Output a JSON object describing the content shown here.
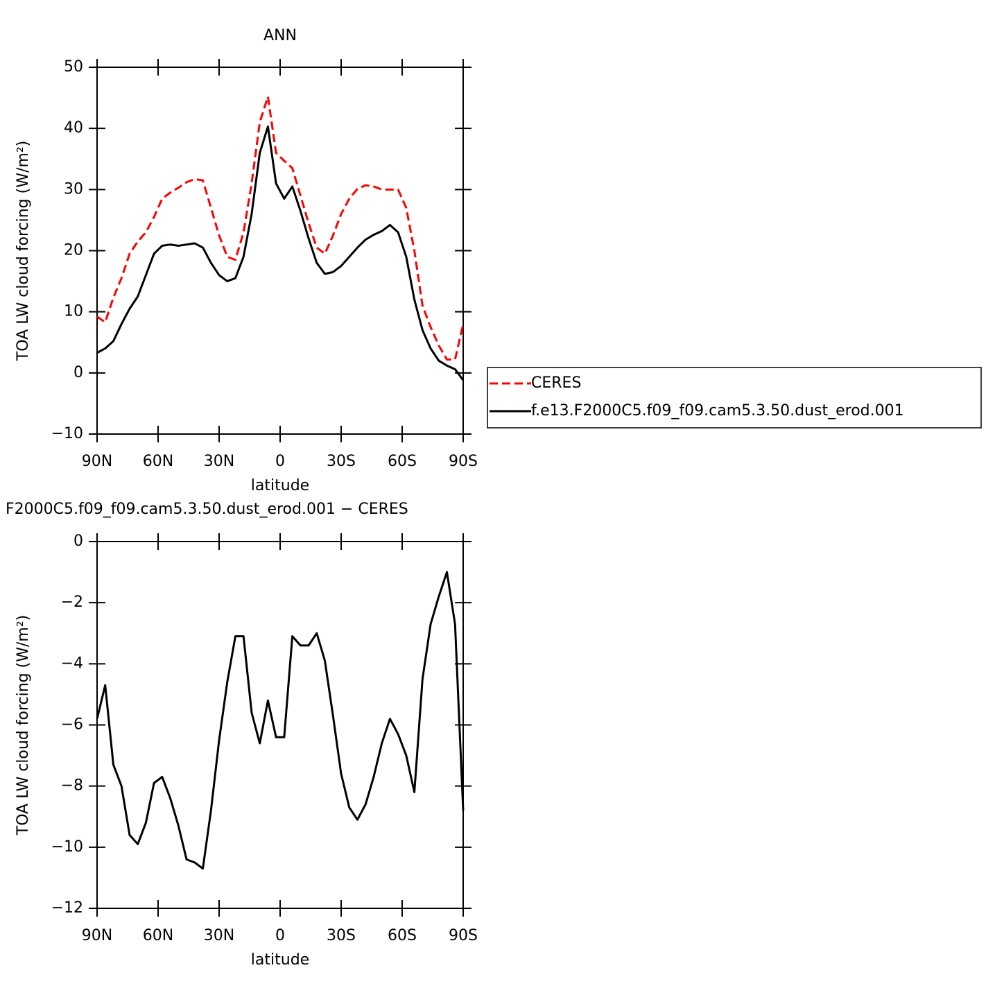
{
  "chart_data": [
    {
      "type": "line",
      "title": "ANN",
      "xlabel": "latitude",
      "ylabel": "TOA LW cloud forcing (W/m²)",
      "x": [
        90,
        86,
        82,
        78,
        74,
        70,
        66,
        62,
        58,
        54,
        50,
        46,
        42,
        38,
        34,
        30,
        26,
        22,
        18,
        14,
        10,
        6,
        2,
        -2,
        -6,
        -10,
        -14,
        -18,
        -22,
        -26,
        -30,
        -34,
        -38,
        -42,
        -46,
        -50,
        -54,
        -58,
        -62,
        -66,
        -70,
        -74,
        -78,
        -82,
        -86,
        -90
      ],
      "xlim": [
        90,
        -90
      ],
      "xticks": [
        {
          "value": 90,
          "label": "90N"
        },
        {
          "value": 60,
          "label": "60N"
        },
        {
          "value": 30,
          "label": "30N"
        },
        0,
        {
          "value": -30,
          "label": "30S"
        },
        {
          "value": -60,
          "label": "60S"
        },
        {
          "value": -90,
          "label": "90S"
        }
      ],
      "ylim": [
        -10,
        50
      ],
      "yticks": [
        {
          "value": -10,
          "label": "−10"
        },
        0,
        10,
        20,
        30,
        40,
        50
      ],
      "legend": "outside right",
      "series": [
        {
          "name": "CERES",
          "color": "#ff0000",
          "style": "dashed",
          "values": [
            9.2,
            8.3,
            12.3,
            15.5,
            19.5,
            21.5,
            23,
            25.5,
            28.5,
            29.5,
            30.3,
            31.2,
            31.7,
            31.5,
            27,
            22.5,
            19,
            18.5,
            23,
            31,
            41,
            45.2,
            36,
            34.7,
            33.5,
            29,
            24.5,
            20.5,
            19.5,
            22.5,
            26,
            28.5,
            30.1,
            30.7,
            30.5,
            30,
            30,
            30,
            27,
            20,
            11,
            7.5,
            4.5,
            2.2,
            2.2,
            8
          ]
        },
        {
          "name": "f.e13.F2000C5.f09_f09.cam5.3.50.dust_erod.001",
          "color": "#000000",
          "style": "solid",
          "values": [
            3.3,
            4,
            5.2,
            8,
            10.5,
            12.5,
            16,
            19.5,
            20.8,
            21,
            20.8,
            21,
            21.2,
            20.5,
            18,
            16,
            15,
            15.5,
            19,
            26,
            36,
            40.3,
            31,
            28.5,
            30.5,
            26.5,
            22,
            18,
            16.2,
            16.5,
            17.5,
            19,
            20.5,
            21.8,
            22.6,
            23.2,
            24.2,
            23,
            19,
            12,
            7,
            4,
            2,
            1.2,
            0.6,
            -1.2
          ]
        }
      ]
    },
    {
      "type": "line",
      "title": "F2000C5.f09_f09.cam5.3.50.dust_erod.001 − CERES",
      "xlabel": "latitude",
      "ylabel": "TOA LW cloud forcing (W/m²)",
      "x": [
        90,
        86,
        82,
        78,
        74,
        70,
        66,
        62,
        58,
        54,
        50,
        46,
        42,
        38,
        34,
        30,
        26,
        22,
        18,
        14,
        10,
        6,
        2,
        -2,
        -6,
        -10,
        -14,
        -18,
        -22,
        -26,
        -30,
        -34,
        -38,
        -42,
        -46,
        -50,
        -54,
        -58,
        -62,
        -66,
        -70,
        -74,
        -78,
        -82,
        -86,
        -90
      ],
      "xlim": [
        90,
        -90
      ],
      "xticks": [
        {
          "value": 90,
          "label": "90N"
        },
        {
          "value": 60,
          "label": "60N"
        },
        {
          "value": 30,
          "label": "30N"
        },
        0,
        {
          "value": -30,
          "label": "30S"
        },
        {
          "value": -60,
          "label": "60S"
        },
        {
          "value": -90,
          "label": "90S"
        }
      ],
      "ylim": [
        -12,
        0
      ],
      "yticks": [
        {
          "value": -12,
          "label": "−12"
        },
        {
          "value": -10,
          "label": "−10"
        },
        {
          "value": -8,
          "label": "−8"
        },
        {
          "value": -6,
          "label": "−6"
        },
        {
          "value": -4,
          "label": "−4"
        },
        {
          "value": -2,
          "label": "−2"
        },
        0
      ],
      "series": [
        {
          "color": "#000000",
          "style": "solid",
          "values": [
            -5.8,
            -4.7,
            -7.3,
            -8.0,
            -9.6,
            -9.9,
            -9.2,
            -7.9,
            -7.7,
            -8.4,
            -9.3,
            -10.4,
            -10.5,
            -10.7,
            -8.8,
            -6.5,
            -4.6,
            -3.1,
            -3.1,
            -5.6,
            -6.6,
            -5.2,
            -6.4,
            -6.4,
            -3.1,
            -3.4,
            -3.4,
            -3.0,
            -3.9,
            -5.7,
            -7.6,
            -8.7,
            -9.1,
            -8.6,
            -7.7,
            -6.6,
            -5.8,
            -6.3,
            -7.0,
            -8.2,
            -4.5,
            -2.7,
            -1.8,
            -1.0,
            -2.7,
            -8.8
          ]
        }
      ]
    }
  ]
}
